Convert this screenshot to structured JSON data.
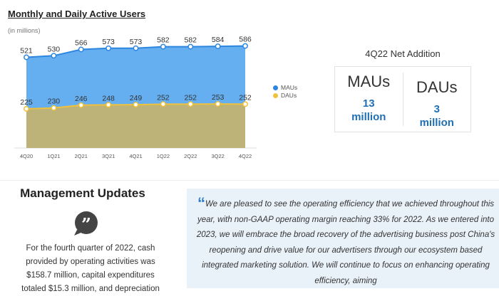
{
  "chart_data": {
    "type": "area",
    "title": "Monthly and Daily Active Users",
    "ylabel": "(in millions)",
    "categories": [
      "4Q20",
      "1Q21",
      "2Q21",
      "3Q21",
      "4Q21",
      "1Q22",
      "2Q22",
      "3Q22",
      "4Q22"
    ],
    "series": [
      {
        "name": "MAUs",
        "values": [
          521,
          530,
          566,
          573,
          573,
          582,
          582,
          584,
          586
        ],
        "color": "#65aef0",
        "line": "#2d86df"
      },
      {
        "name": "DAUs",
        "values": [
          225,
          230,
          246,
          248,
          249,
          252,
          252,
          253,
          252
        ],
        "color": "#bdb278",
        "line": "#f0c23c"
      }
    ],
    "ylim": [
      0,
      850
    ],
    "legend": "right"
  },
  "net_addition": {
    "title": "4Q22 Net Addition",
    "items": [
      {
        "label": "MAUs",
        "value": "13",
        "unit": "million"
      },
      {
        "label": "DAUs",
        "value": "3",
        "unit": "million"
      }
    ]
  },
  "management": {
    "title": "Management Updates",
    "text": "For the fourth quarter of 2022, cash provided by operating activities was $158.7 million, capital expenditures totaled $15.3 million, and depreciation"
  },
  "quote": {
    "mark": "“",
    "text": "We are pleased to see the operating efficiency that we achieved throughout this year, with non-GAAP operating margin reaching 33% for 2022. As we entered into 2023, we will embrace the broad recovery of the advertising business post China's reopening and drive value for our advertisers through our ecosystem based integrated marketing solution. We will continue to focus on enhancing operating efficiency, aiming"
  }
}
